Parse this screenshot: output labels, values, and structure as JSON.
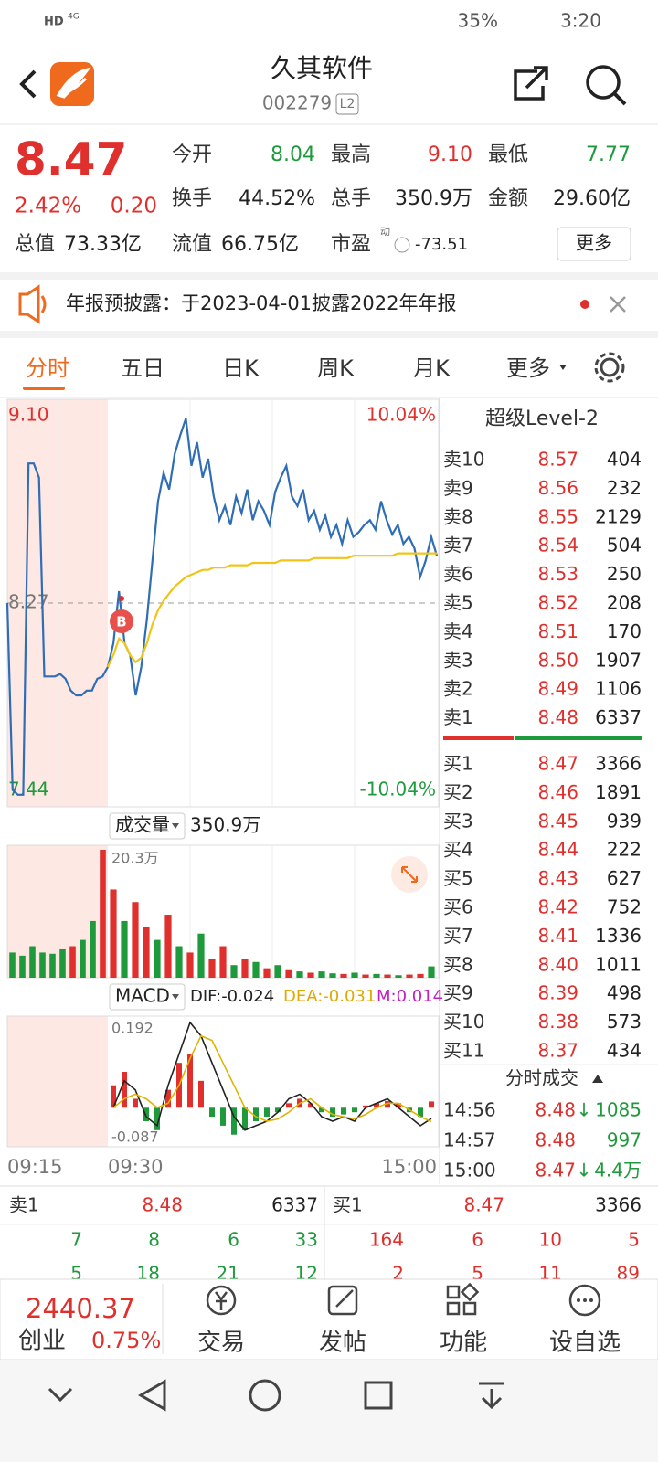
{
  "status": {
    "network": "HD",
    "signal": "4G",
    "battery": "35%",
    "time": "3:20"
  },
  "header": {
    "title": "久其软件",
    "code": "002279",
    "badge": "L2"
  },
  "quote": {
    "price": "8.47",
    "percent": "2.42%",
    "change": "0.20",
    "fields": [
      {
        "label": "今开",
        "value": "8.04",
        "color": "#1e9a3c"
      },
      {
        "label": "最高",
        "value": "9.10",
        "color": "#e0302d"
      },
      {
        "label": "最低",
        "value": "7.77",
        "color": "#1e9a3c"
      },
      {
        "label": "换手",
        "value": "44.52%",
        "color": "#222222"
      },
      {
        "label": "总手",
        "value": "350.9万",
        "color": "#222222"
      },
      {
        "label": "金额",
        "value": "29.60亿",
        "color": "#222222"
      },
      {
        "label": "总值",
        "value": "73.33亿",
        "color": "#222222"
      },
      {
        "label": "流值",
        "value": "66.75亿",
        "color": "#222222"
      },
      {
        "label": "市盈",
        "superscript": "动",
        "value": "-73.51",
        "color": "#222222"
      }
    ],
    "more": "更多"
  },
  "notice": {
    "text": "年报预披露：于2023-04-01披露2022年年报"
  },
  "tabs": [
    "分时",
    "五日",
    "日K",
    "周K",
    "月K",
    "更多"
  ],
  "chart_data": [
    {
      "type": "line",
      "ylim": [
        7.44,
        9.1
      ],
      "yticks": [
        {
          "value": 9.1,
          "label": "9.10"
        },
        8.27,
        7.44
      ],
      "y2lim": [
        -10.04,
        10.04
      ],
      "y2ticks": [
        {
          "value": 10.04,
          "label": "10.04%"
        },
        {
          "value": -10.04,
          "label": "-10.04%"
        }
      ],
      "xticks": [
        "09:15",
        "09:30",
        "15:00"
      ],
      "marker": {
        "label": "B"
      },
      "series": [
        {
          "session": "pre",
          "color": "#2f6db5",
          "values": [
            8.27,
            7.48,
            7.46,
            7.46,
            8.86,
            8.86,
            8.8,
            7.96,
            7.96,
            7.96,
            7.97,
            7.95,
            7.9,
            7.88,
            7.88,
            7.9,
            7.9,
            7.95,
            7.96,
            8.0
          ]
        },
        {
          "session": "main",
          "color": "#2f6db5",
          "values": [
            8.0,
            8.1,
            8.32,
            8.1,
            8.05,
            7.88,
            8.0,
            8.2,
            8.45,
            8.7,
            8.82,
            8.75,
            8.9,
            8.98,
            9.05,
            8.85,
            8.95,
            8.8,
            8.88,
            8.72,
            8.62,
            8.68,
            8.6,
            8.72,
            8.65,
            8.75,
            8.62,
            8.7,
            8.66,
            8.6,
            8.74,
            8.8,
            8.85,
            8.72,
            8.68,
            8.75,
            8.62,
            8.66,
            8.58,
            8.64,
            8.55,
            8.6,
            8.52,
            8.62,
            8.55,
            8.57,
            8.6,
            8.62,
            8.58,
            8.7,
            8.62,
            8.56,
            8.6,
            8.52,
            8.55,
            8.5,
            8.38,
            8.45,
            8.55,
            8.47
          ]
        },
        {
          "session": "main",
          "color": "#f0c419",
          "values": [
            8.0,
            8.05,
            8.12,
            8.1,
            8.05,
            8.02,
            8.04,
            8.1,
            8.18,
            8.24,
            8.28,
            8.31,
            8.34,
            8.36,
            8.38,
            8.39,
            8.4,
            8.41,
            8.41,
            8.42,
            8.42,
            8.42,
            8.43,
            8.43,
            8.43,
            8.43,
            8.44,
            8.44,
            8.44,
            8.44,
            8.44,
            8.45,
            8.45,
            8.45,
            8.45,
            8.45,
            8.45,
            8.46,
            8.46,
            8.46,
            8.46,
            8.46,
            8.46,
            8.46,
            8.47,
            8.47,
            8.47,
            8.47,
            8.47,
            8.47,
            8.47,
            8.47,
            8.48,
            8.48,
            8.48,
            8.48,
            8.48,
            8.48,
            8.48,
            8.48
          ]
        }
      ]
    },
    {
      "type": "bar",
      "title": "成交量",
      "total": "350.9万",
      "ylim": [
        0,
        20.3
      ],
      "yticks": [
        {
          "value": 20.3,
          "label": "20.3万"
        }
      ],
      "series": [
        {
          "session": "pre",
          "values": [
            4,
            3.5,
            5,
            4,
            3.8,
            4.5,
            5,
            6,
            9,
            20.3
          ],
          "colors": [
            "#1e9a3c",
            "#1e9a3c",
            "#1e9a3c",
            "#1e9a3c",
            "#1e9a3c",
            "#1e9a3c",
            "#e0302d",
            "#1e9a3c",
            "#1e9a3c",
            "#e0302d"
          ]
        },
        {
          "session": "main",
          "values": [
            14,
            9,
            12,
            8,
            6,
            10,
            5,
            4,
            7,
            3,
            5,
            2,
            3,
            2.5,
            1.5,
            2,
            1.2,
            1,
            0.8,
            1,
            0.7,
            0.6,
            0.8,
            0.5,
            0.6,
            0.5,
            0.4,
            0.5,
            0.6,
            1.8
          ],
          "colors": [
            "#e0302d",
            "#1e9a3c",
            "#e0302d",
            "#e0302d",
            "#1e9a3c",
            "#e0302d",
            "#1e9a3c",
            "#e0302d",
            "#1e9a3c",
            "#e0302d",
            "#e0302d",
            "#1e9a3c",
            "#e0302d",
            "#1e9a3c",
            "#e0302d",
            "#1e9a3c",
            "#e0302d",
            "#1e9a3c",
            "#e0302d",
            "#1e9a3c",
            "#1e9a3c",
            "#e0302d",
            "#1e9a3c",
            "#e0302d",
            "#1e9a3c",
            "#e0302d",
            "#1e9a3c",
            "#e0302d",
            "#e0302d",
            "#1e9a3c"
          ]
        }
      ]
    },
    {
      "type": "macd",
      "title": "MACD",
      "ylim": [
        -0.087,
        0.192
      ],
      "yticks": [
        0.192,
        -0.087
      ],
      "legend": [
        {
          "text": "DIF:-0.024",
          "color": "#222222"
        },
        {
          "text": "DEA:-0.031",
          "color": "#e0a800"
        },
        {
          "text": "M:0.014",
          "color": "#c020c0"
        }
      ],
      "histogram": {
        "up_color": "#e0302d",
        "down_color": "#1e9a3c",
        "values": [
          0.05,
          0.08,
          0.02,
          -0.03,
          -0.05,
          0.04,
          0.1,
          0.12,
          0.06,
          -0.02,
          -0.04,
          -0.06,
          -0.05,
          -0.03,
          -0.02,
          -0.01,
          0.01,
          0.02,
          0.01,
          -0.01,
          -0.02,
          -0.015,
          -0.01,
          0.005,
          0.01,
          0.015,
          0.01,
          -0.01,
          -0.02,
          0.014
        ]
      },
      "series": [
        {
          "color": "#222222",
          "values": [
            0.0,
            0.06,
            0.04,
            -0.02,
            -0.04,
            0.05,
            0.12,
            0.19,
            0.16,
            0.1,
            0.04,
            -0.02,
            -0.05,
            -0.04,
            -0.03,
            -0.01,
            0.02,
            0.03,
            0.01,
            -0.02,
            -0.03,
            -0.02,
            -0.03,
            0.0,
            0.01,
            0.02,
            0.0,
            -0.02,
            -0.04,
            -0.024
          ]
        },
        {
          "color": "#e0b400",
          "values": [
            0.0,
            0.02,
            0.03,
            0.02,
            0.0,
            0.01,
            0.05,
            0.11,
            0.16,
            0.15,
            0.1,
            0.05,
            0.0,
            -0.02,
            -0.03,
            -0.025,
            -0.01,
            0.01,
            0.02,
            0.0,
            -0.015,
            -0.02,
            -0.025,
            -0.015,
            0.0,
            0.01,
            0.01,
            -0.005,
            -0.02,
            -0.031
          ]
        }
      ]
    }
  ],
  "orderbook": {
    "title": "超级Level-2",
    "asks": [
      {
        "label": "卖10",
        "price": "8.57",
        "volume": "404"
      },
      {
        "label": "卖9",
        "price": "8.56",
        "volume": "232"
      },
      {
        "label": "卖8",
        "price": "8.55",
        "volume": "2129"
      },
      {
        "label": "卖7",
        "price": "8.54",
        "volume": "504"
      },
      {
        "label": "卖6",
        "price": "8.53",
        "volume": "250"
      },
      {
        "label": "卖5",
        "price": "8.52",
        "volume": "208"
      },
      {
        "label": "卖4",
        "price": "8.51",
        "volume": "170"
      },
      {
        "label": "卖3",
        "price": "8.50",
        "volume": "1907"
      },
      {
        "label": "卖2",
        "price": "8.49",
        "volume": "1106"
      },
      {
        "label": "卖1",
        "price": "8.48",
        "volume": "6337"
      }
    ],
    "bids": [
      {
        "label": "买1",
        "price": "8.47",
        "volume": "3366"
      },
      {
        "label": "买2",
        "price": "8.46",
        "volume": "1891"
      },
      {
        "label": "买3",
        "price": "8.45",
        "volume": "939"
      },
      {
        "label": "买4",
        "price": "8.44",
        "volume": "222"
      },
      {
        "label": "买5",
        "price": "8.43",
        "volume": "627"
      },
      {
        "label": "买6",
        "price": "8.42",
        "volume": "752"
      },
      {
        "label": "买7",
        "price": "8.41",
        "volume": "1336"
      },
      {
        "label": "买8",
        "price": "8.40",
        "volume": "1011"
      },
      {
        "label": "买9",
        "price": "8.39",
        "volume": "498"
      },
      {
        "label": "买10",
        "price": "8.38",
        "volume": "573"
      },
      {
        "label": "买11",
        "price": "8.37",
        "volume": "434"
      }
    ]
  },
  "trades": {
    "title": "分时成交",
    "rows": [
      {
        "time": "14:56",
        "price": "8.48",
        "arrow": "↓",
        "volume": "1085"
      },
      {
        "time": "14:57",
        "price": "8.48",
        "volume": "997"
      },
      {
        "time": "15:00",
        "price": "8.47",
        "arrow": "↓",
        "volume": "4.4万"
      }
    ]
  },
  "depth": {
    "ask1": {
      "label": "卖1",
      "price": "8.48",
      "volume": "6337"
    },
    "bid1": {
      "label": "买1",
      "price": "8.47",
      "volume": "3366"
    },
    "ask_rows": [
      [
        "7",
        "8",
        "6",
        "33"
      ],
      [
        "5",
        "18",
        "21",
        "12"
      ]
    ],
    "bid_rows": [
      [
        "164",
        "6",
        "10",
        "5"
      ],
      [
        "2",
        "5",
        "11",
        "89"
      ]
    ]
  },
  "footer": {
    "index": "2440.37",
    "index_name": "创业",
    "index_change": "0.75%",
    "buttons": [
      "交易",
      "发帖",
      "功能",
      "设自选"
    ]
  }
}
